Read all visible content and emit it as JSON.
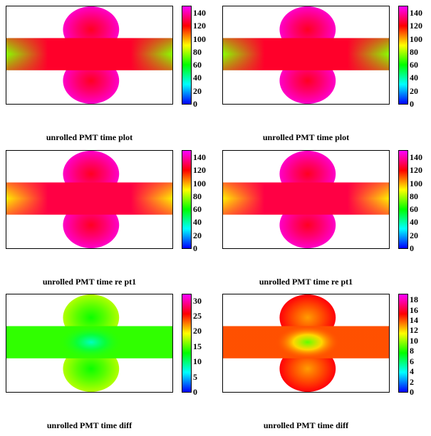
{
  "chart_data": [
    {
      "type": "heatmap",
      "title": "unrolled PMT time plot",
      "colorbar": {
        "min": 0,
        "max": 150,
        "ticks": [
          0,
          20,
          40,
          60,
          80,
          100,
          120,
          140
        ]
      },
      "cap_value": 133,
      "barrel_edge_value": 76,
      "barrel_mid_value": 125
    },
    {
      "type": "heatmap",
      "title": "unrolled PMT time plot",
      "colorbar": {
        "min": 0,
        "max": 150,
        "ticks": [
          0,
          20,
          40,
          60,
          80,
          100,
          120,
          140
        ]
      },
      "cap_value": 133,
      "barrel_edge_value": 76,
      "barrel_mid_value": 125
    },
    {
      "type": "heatmap",
      "title": "unrolled PMT time re pt1",
      "colorbar": {
        "min": 0,
        "max": 150,
        "ticks": [
          0,
          20,
          40,
          60,
          80,
          100,
          120,
          140
        ]
      },
      "cap_value": 133,
      "barrel_edge_value": 92,
      "barrel_mid_value": 128
    },
    {
      "type": "heatmap",
      "title": "unrolled PMT time re pt1",
      "colorbar": {
        "min": 0,
        "max": 150,
        "ticks": [
          0,
          20,
          40,
          60,
          80,
          100,
          120,
          140
        ]
      },
      "cap_value": 133,
      "barrel_edge_value": 92,
      "barrel_mid_value": 128
    },
    {
      "type": "heatmap",
      "title": "unrolled PMT time diff",
      "colorbar": {
        "min": 0,
        "max": 32,
        "ticks": [
          0,
          5,
          10,
          15,
          20,
          25,
          30
        ]
      },
      "cap_value": 15,
      "barrel_edge_value": 14,
      "barrel_mid_value": 14,
      "center_value": 8
    },
    {
      "type": "heatmap",
      "title": "unrolled PMT time diff",
      "colorbar": {
        "min": 0,
        "max": 19,
        "ticks": [
          0,
          2,
          4,
          6,
          8,
          10,
          12,
          14,
          16,
          18
        ]
      },
      "cap_value": 14,
      "barrel_edge_value": 14,
      "barrel_mid_value": 14,
      "center_value": 9
    }
  ]
}
